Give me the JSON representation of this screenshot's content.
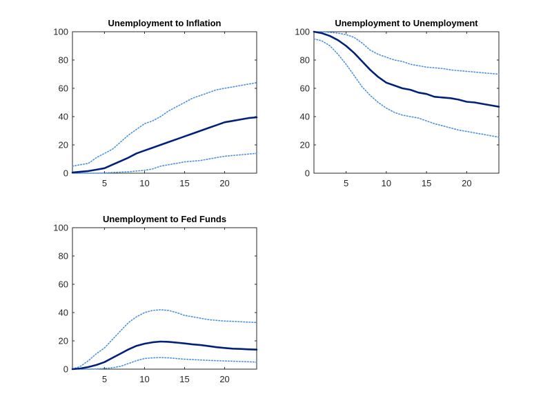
{
  "chart_data": [
    {
      "type": "line",
      "title": "Unemployment to Inflation",
      "xlabel": "",
      "ylabel": "",
      "xlim": [
        1,
        24
      ],
      "ylim": [
        0,
        100
      ],
      "xticks": [
        5,
        10,
        15,
        20
      ],
      "yticks": [
        0,
        20,
        40,
        60,
        80,
        100
      ],
      "grid": false,
      "x": [
        1,
        2,
        3,
        4,
        5,
        6,
        7,
        8,
        9,
        10,
        11,
        12,
        13,
        14,
        15,
        16,
        17,
        18,
        19,
        20,
        21,
        22,
        23,
        24
      ],
      "series": [
        {
          "role": "upper",
          "style": "dotted",
          "color": "#4a90e2",
          "values": [
            5,
            6,
            7,
            11,
            14,
            17,
            22,
            27,
            31,
            35,
            37,
            40,
            44,
            47,
            50,
            53,
            55,
            57,
            59,
            60,
            61,
            62,
            63,
            64
          ]
        },
        {
          "role": "median",
          "style": "solid",
          "color": "#00207a",
          "values": [
            0.5,
            1,
            1.5,
            2.5,
            3.5,
            6,
            8.5,
            11,
            14,
            16,
            18,
            20,
            22,
            24,
            26,
            28,
            30,
            32,
            34,
            36,
            37,
            38,
            39,
            39.5
          ]
        },
        {
          "role": "lower",
          "style": "dotted",
          "color": "#4a90e2",
          "values": [
            0,
            0,
            0,
            0,
            0.2,
            0.5,
            0.8,
            1,
            1.5,
            2,
            3,
            5,
            6,
            7,
            8,
            8.5,
            9,
            10,
            11,
            12,
            12.5,
            13,
            13.5,
            14
          ]
        }
      ]
    },
    {
      "type": "line",
      "title": "Unemployment to Unemployment",
      "xlabel": "",
      "ylabel": "",
      "xlim": [
        1,
        24
      ],
      "ylim": [
        0,
        100
      ],
      "xticks": [
        5,
        10,
        15,
        20
      ],
      "yticks": [
        0,
        20,
        40,
        60,
        80,
        100
      ],
      "grid": false,
      "x": [
        1,
        2,
        3,
        4,
        5,
        6,
        7,
        8,
        9,
        10,
        11,
        12,
        13,
        14,
        15,
        16,
        17,
        18,
        19,
        20,
        21,
        22,
        23,
        24
      ],
      "series": [
        {
          "role": "upper",
          "style": "dotted",
          "color": "#4a90e2",
          "values": [
            100,
            100,
            99.5,
            99,
            98,
            96,
            92,
            87,
            84,
            82,
            80,
            79,
            77,
            76,
            75,
            74.5,
            74,
            73,
            72.5,
            72,
            71.5,
            71,
            70.5,
            70
          ]
        },
        {
          "role": "median",
          "style": "solid",
          "color": "#00207a",
          "values": [
            100,
            99,
            97,
            94,
            90,
            85,
            79,
            73,
            68,
            64,
            62,
            60,
            59,
            57,
            56,
            54,
            53.5,
            53,
            52,
            50.5,
            50,
            49,
            48,
            47
          ]
        },
        {
          "role": "lower",
          "style": "dotted",
          "color": "#4a90e2",
          "values": [
            95,
            93.5,
            90,
            84,
            77,
            69,
            61,
            55,
            50,
            46,
            43,
            41,
            40,
            39,
            37,
            35,
            33.5,
            32,
            30.5,
            29.5,
            28.5,
            27.5,
            26.5,
            25.5
          ]
        }
      ]
    },
    {
      "type": "line",
      "title": "Unemployment to Fed Funds",
      "xlabel": "",
      "ylabel": "",
      "xlim": [
        1,
        24
      ],
      "ylim": [
        0,
        100
      ],
      "xticks": [
        5,
        10,
        15,
        20
      ],
      "yticks": [
        0,
        20,
        40,
        60,
        80,
        100
      ],
      "grid": false,
      "x": [
        1,
        2,
        3,
        4,
        5,
        6,
        7,
        8,
        9,
        10,
        11,
        12,
        13,
        14,
        15,
        16,
        17,
        18,
        19,
        20,
        21,
        22,
        23,
        24
      ],
      "series": [
        {
          "role": "upper",
          "style": "dotted",
          "color": "#4a90e2",
          "values": [
            0,
            2,
            6,
            11,
            15,
            21,
            27,
            33,
            37,
            40,
            41.5,
            42,
            41.5,
            40,
            38,
            37,
            36,
            35,
            34.5,
            34,
            33.8,
            33.5,
            33.2,
            33
          ]
        },
        {
          "role": "median",
          "style": "solid",
          "color": "#00207a",
          "values": [
            0,
            0.5,
            1.5,
            3,
            5,
            8,
            11,
            14,
            16.5,
            18,
            19,
            19.5,
            19.3,
            18.8,
            18.2,
            17.5,
            17,
            16.3,
            15.5,
            15,
            14.5,
            14.3,
            14,
            13.8
          ]
        },
        {
          "role": "lower",
          "style": "dotted",
          "color": "#4a90e2",
          "values": [
            0,
            0,
            0,
            0.2,
            0.5,
            1,
            2,
            4,
            6,
            7.5,
            8,
            8.2,
            8,
            7.5,
            7,
            6.8,
            6.5,
            6.2,
            6,
            5.8,
            5.6,
            5.4,
            5.2,
            5
          ]
        }
      ]
    }
  ]
}
